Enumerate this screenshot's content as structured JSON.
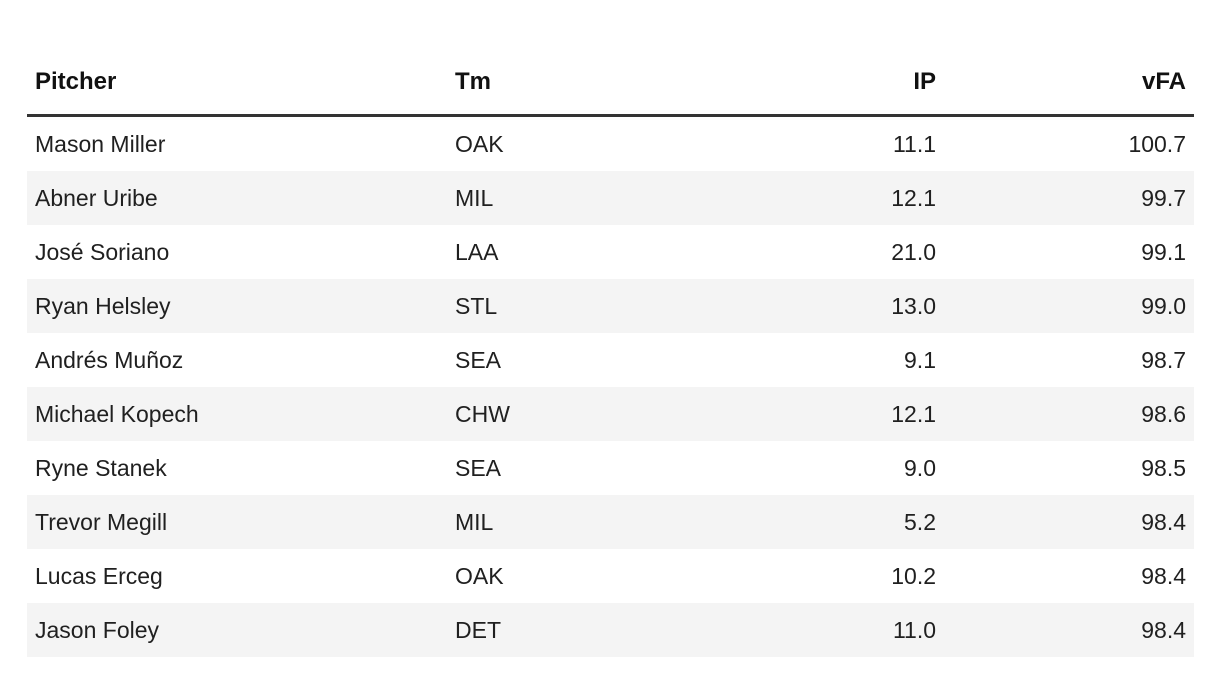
{
  "table": {
    "columns": [
      {
        "key": "pitcher",
        "label": "Pitcher"
      },
      {
        "key": "team",
        "label": "Tm"
      },
      {
        "key": "ip",
        "label": "IP"
      },
      {
        "key": "vfa",
        "label": "vFA"
      }
    ],
    "rows": [
      [
        "Mason Miller",
        "OAK",
        "11.1",
        "100.7"
      ],
      [
        "Abner Uribe",
        "MIL",
        "12.1",
        "99.7"
      ],
      [
        "José Soriano",
        "LAA",
        "21.0",
        "99.1"
      ],
      [
        "Ryan Helsley",
        "STL",
        "13.0",
        "99.0"
      ],
      [
        "Andrés Muñoz",
        "SEA",
        "9.1",
        "98.7"
      ],
      [
        "Michael Kopech",
        "CHW",
        "12.1",
        "98.6"
      ],
      [
        "Ryne Stanek",
        "SEA",
        "9.0",
        "98.5"
      ],
      [
        "Trevor Megill",
        "MIL",
        "5.2",
        "98.4"
      ],
      [
        "Lucas Erceg",
        "OAK",
        "10.2",
        "98.4"
      ],
      [
        "Jason Foley",
        "DET",
        "11.0",
        "98.4"
      ]
    ]
  },
  "colors": {
    "background": "#ffffff",
    "row_stripe": "#f4f4f4",
    "header_rule": "#333333",
    "header_text": "#111111",
    "body_text": "#202020"
  },
  "chart_data": {
    "type": "table",
    "columns": [
      "Pitcher",
      "Tm",
      "IP",
      "vFA"
    ],
    "rows": [
      [
        "Mason Miller",
        "OAK",
        11.1,
        100.7
      ],
      [
        "Abner Uribe",
        "MIL",
        12.1,
        99.7
      ],
      [
        "José Soriano",
        "LAA",
        21.0,
        99.1
      ],
      [
        "Ryan Helsley",
        "STL",
        13.0,
        99.0
      ],
      [
        "Andrés Muñoz",
        "SEA",
        9.1,
        98.7
      ],
      [
        "Michael Kopech",
        "CHW",
        12.1,
        98.6
      ],
      [
        "Ryne Stanek",
        "SEA",
        9.0,
        98.5
      ],
      [
        "Trevor Megill",
        "MIL",
        5.2,
        98.4
      ],
      [
        "Lucas Erceg",
        "OAK",
        10.2,
        98.4
      ],
      [
        "Jason Foley",
        "DET",
        11.0,
        98.4
      ]
    ],
    "title": "",
    "notes": "Fastball velocity (vFA) leaderboard for relief pitchers; no axes, grid off, striped rows"
  }
}
